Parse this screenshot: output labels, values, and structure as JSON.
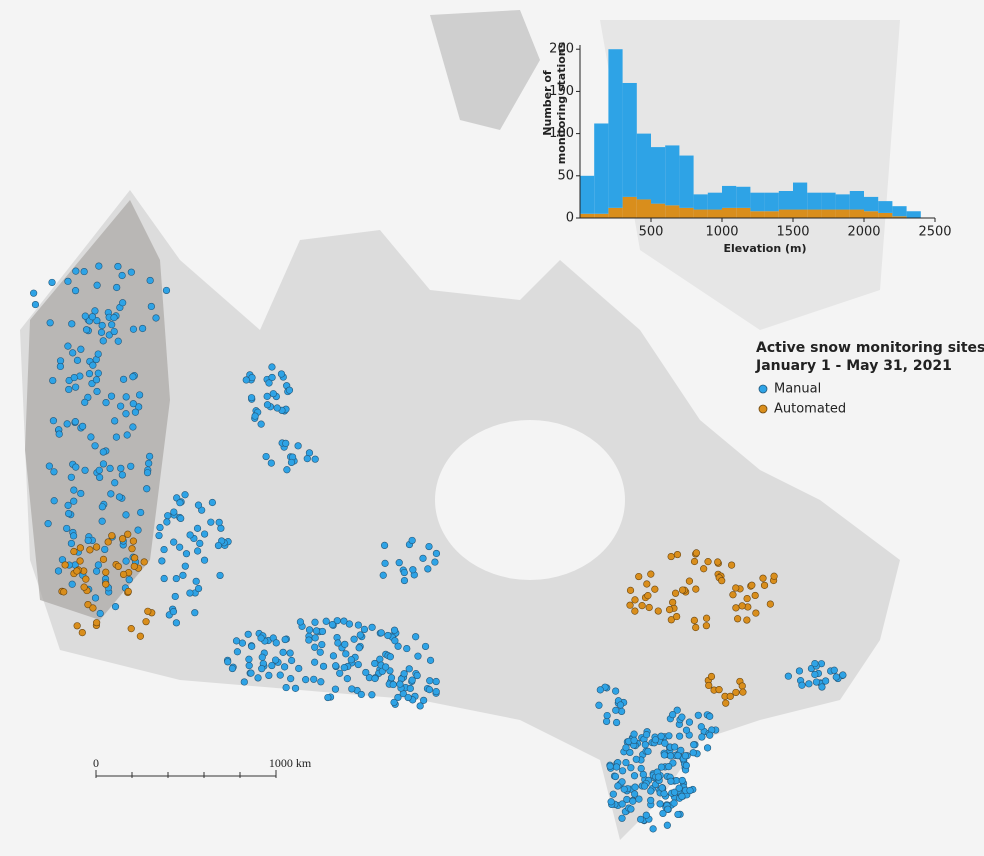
{
  "chart_data": {
    "type": "histogram",
    "xlabel": "Elevation (m)",
    "ylabel": [
      "Number of",
      "monitoring stations"
    ],
    "bins": [
      0,
      100,
      200,
      300,
      400,
      500,
      600,
      700,
      800,
      900,
      1000,
      1100,
      1200,
      1300,
      1400,
      1500,
      1600,
      1700,
      1800,
      1900,
      2000,
      2100,
      2200,
      2300,
      2400
    ],
    "series": [
      {
        "name": "Automated",
        "color": "#d98e1c",
        "values": [
          5,
          5,
          12,
          25,
          22,
          17,
          15,
          12,
          10,
          10,
          12,
          12,
          8,
          8,
          10,
          10,
          10,
          10,
          10,
          10,
          8,
          6,
          2,
          0
        ]
      },
      {
        "name": "Manual",
        "color": "#2ea3e6",
        "values": [
          45,
          107,
          188,
          135,
          78,
          67,
          71,
          62,
          18,
          20,
          26,
          25,
          22,
          22,
          22,
          32,
          20,
          20,
          18,
          22,
          17,
          14,
          12,
          8
        ]
      }
    ],
    "stacked": true,
    "xlim": [
      0,
      2500
    ],
    "xticks": [
      500,
      1000,
      1500,
      2000,
      2500
    ],
    "ylim": [
      0,
      205
    ],
    "yticks": [
      0,
      50,
      100,
      150,
      200
    ]
  },
  "map": {
    "legend_title": [
      "Active snow monitoring sites",
      "January 1 - May 31, 2021"
    ],
    "legend_entries": [
      "Manual",
      "Automated"
    ],
    "scale_bar": {
      "start": "0",
      "end": "1000 km"
    }
  }
}
